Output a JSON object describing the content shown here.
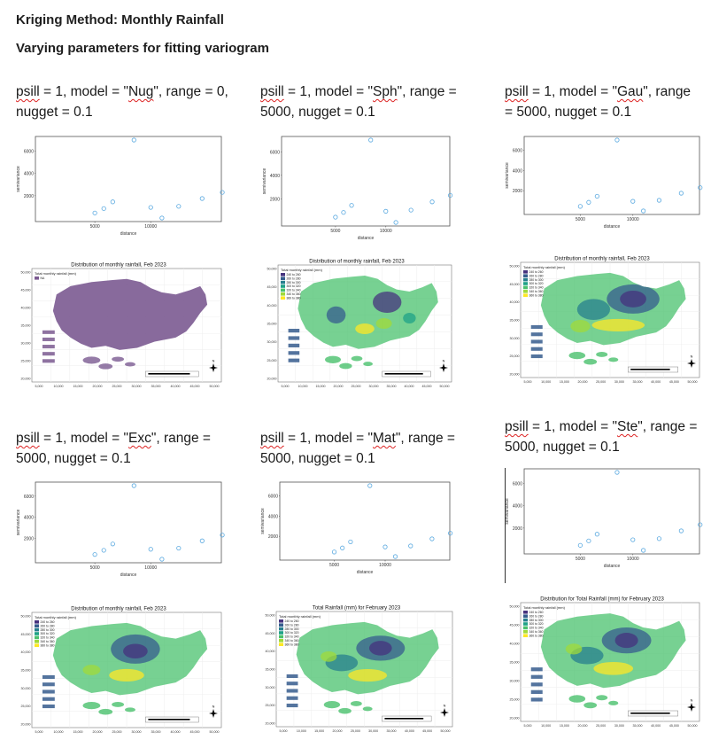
{
  "heading": "Kriging Method: Monthly Rainfall",
  "subheading": "Varying parameters for fitting variogram",
  "variogram_axis": {
    "ylabel": "semivariance",
    "xlabel": "distance",
    "y_ticks": [
      "2000",
      "4000",
      "6000"
    ],
    "x_ticks": [
      "5000",
      "10000"
    ]
  },
  "map_axis": {
    "y_ticks": [
      "20,000",
      "25,000",
      "30,000",
      "35,000",
      "40,000",
      "45,000",
      "50,000"
    ],
    "x_ticks": [
      "5,000",
      "10,000",
      "15,000",
      "20,000",
      "25,000",
      "30,000",
      "35,000",
      "40,000",
      "45,000",
      "50,000"
    ],
    "north": "N"
  },
  "panels": [
    {
      "caption_pre": "psill = 1, model = \"",
      "caption_model": "Nug",
      "caption_post": "\", range = 0, nugget = 0.1",
      "map_title": "Distribution of monthly rainfall, Feb 2023",
      "legend_title": "Total monthly rainfall (mm)",
      "legend_items": [
        "NA"
      ],
      "map_style": "nug"
    },
    {
      "caption_pre": "psill = 1, model = \"",
      "caption_model": "Sph",
      "caption_post": "\", range = 5000, nugget = 0.1",
      "map_title": "Distribution of monthly rainfall, Feb 2023",
      "legend_title": "Total monthly rainfall (mm)",
      "legend_items": [
        "240 to 260",
        "260 to 280",
        "280 to 300",
        "300 to 320",
        "320 to 340",
        "340 to 360",
        "360 to 380"
      ],
      "map_style": "sph"
    },
    {
      "caption_pre": "psill = 1, model = \"",
      "caption_model": "Gau",
      "caption_post": "\", range = 5000, nugget = 0.1",
      "map_title": "Distribution of monthly rainfall, Feb 2023",
      "legend_title": "Total monthly rainfall (mm)",
      "legend_items": [
        "240 to 260",
        "260 to 280",
        "280 to 300",
        "300 to 320",
        "320 to 340",
        "340 to 360",
        "360 to 380"
      ],
      "map_style": "gau"
    },
    {
      "caption_pre": "psill = 1, model = \"",
      "caption_model": "Exc",
      "caption_post": "\", range = 5000, nugget = 0.1",
      "map_title": "Distribution of monthly rainfall, Feb 2023",
      "legend_title": "Total monthly rainfall (mm)",
      "legend_items": [
        "240 to 260",
        "260 to 280",
        "280 to 300",
        "300 to 320",
        "320 to 340",
        "340 to 360",
        "360 to 380"
      ],
      "map_style": "exc"
    },
    {
      "caption_pre": "psill = 1, model = \"",
      "caption_model": "Mat",
      "caption_post": "\", range = 5000, nugget = 0.1",
      "map_title": "Total Rainfall (mm) for February 2023",
      "legend_title": "Total monthly rainfall (mm)",
      "legend_items": [
        "240 to 260",
        "260 to 280",
        "280 to 300",
        "300 to 320",
        "320 to 340",
        "340 to 360",
        "360 to 380"
      ],
      "map_style": "mat"
    },
    {
      "caption_pre": "psill = 1, model = \"",
      "caption_model": "Ste",
      "caption_post": "\", range = 5000, nugget = 0.1",
      "map_title": "Distribution for Total Rainfall (mm) for February 2023",
      "legend_title": "Total monthly rainfall (mm)",
      "legend_items": [
        "240 to 260",
        "260 to 280",
        "280 to 300",
        "300 to 320",
        "320 to 340",
        "340 to 360",
        "360 to 380"
      ],
      "map_style": "ste"
    }
  ],
  "chart_data": {
    "type": "scatter",
    "title": "",
    "xlabel": "distance",
    "ylabel": "semivariance",
    "xlim": [
      0,
      16000
    ],
    "ylim": [
      0,
      7000
    ],
    "x": [
      5000,
      5800,
      6600,
      8500,
      10000,
      11000,
      12500,
      14600,
      16400
    ],
    "y": [
      450,
      850,
      1450,
      7000,
      950,
      0,
      1050,
      1750,
      2300
    ]
  },
  "colors": {
    "points": "#5aa9e0",
    "nug_fill": "#7b5a91",
    "viridis": [
      "#46337e",
      "#365c8d",
      "#277f8e",
      "#1fa187",
      "#4ac16d",
      "#a0da39",
      "#fde725"
    ],
    "squiggle": "#dd2222"
  }
}
